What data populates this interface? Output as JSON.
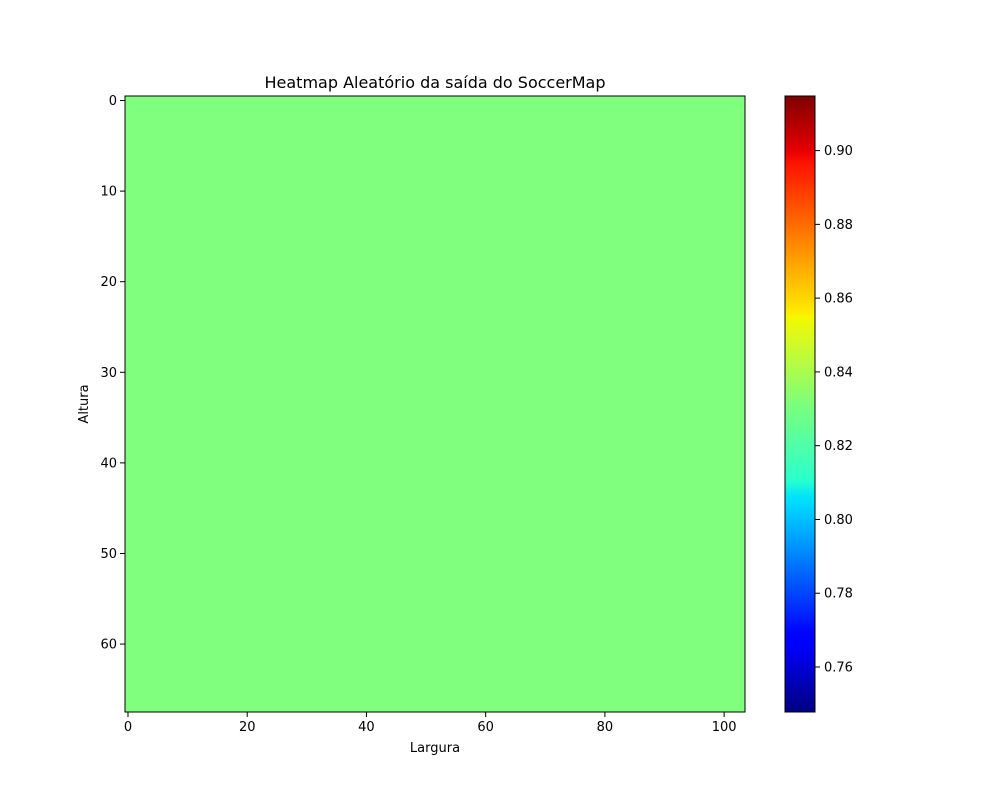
{
  "chart_data": {
    "type": "heatmap",
    "title": "Heatmap Aleatório da saída do SoccerMap",
    "xlabel": "Largura",
    "ylabel": "Altura",
    "grid": false,
    "n_cols": 104,
    "n_rows": 68,
    "xlim": [
      -0.5,
      103.5
    ],
    "ylim": [
      67.5,
      -0.5
    ],
    "x_ticks": [
      0,
      20,
      40,
      60,
      80,
      100
    ],
    "y_ticks": [
      0,
      10,
      20,
      30,
      40,
      50,
      60
    ],
    "fill_value": 0.8313,
    "colormap": "jet",
    "colorbar": {
      "range": [
        0.7478,
        0.9148
      ],
      "ticks": [
        "0.76",
        "0.78",
        "0.80",
        "0.82",
        "0.84",
        "0.86",
        "0.88",
        "0.90"
      ],
      "tick_values": [
        0.76,
        0.78,
        0.8,
        0.82,
        0.84,
        0.86,
        0.88,
        0.9
      ]
    }
  }
}
